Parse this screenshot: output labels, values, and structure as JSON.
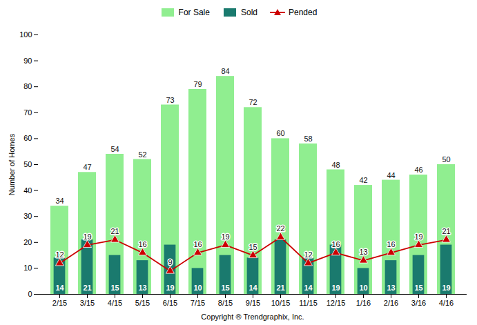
{
  "chart_data": {
    "type": "bar",
    "categories": [
      "2/15",
      "3/15",
      "4/15",
      "5/15",
      "6/15",
      "7/15",
      "8/15",
      "9/15",
      "10/15",
      "11/15",
      "12/15",
      "1/16",
      "2/16",
      "3/16",
      "4/16"
    ],
    "series": [
      {
        "name": "For Sale",
        "type": "bar",
        "color": "#90EE90",
        "values": [
          34,
          47,
          54,
          52,
          73,
          79,
          84,
          72,
          60,
          58,
          48,
          42,
          44,
          46,
          50
        ]
      },
      {
        "name": "Sold",
        "type": "bar",
        "color": "#1a7a6e",
        "values": [
          14,
          21,
          15,
          13,
          19,
          10,
          15,
          14,
          21,
          14,
          19,
          10,
          13,
          15,
          19
        ]
      },
      {
        "name": "Pended",
        "type": "line",
        "color": "#cc0000",
        "marker": "triangle",
        "values": [
          12,
          19,
          21,
          16,
          9,
          16,
          19,
          15,
          22,
          12,
          16,
          13,
          16,
          19,
          21
        ]
      }
    ],
    "xlabel": "Copyright ® Trendgraphix, Inc.",
    "ylabel": "Number of Homes",
    "ylim": [
      0,
      100
    ],
    "yticks": [
      0,
      10,
      20,
      30,
      40,
      50,
      60,
      70,
      80,
      90,
      100
    ],
    "grid": false,
    "legend": "top",
    "data_labels": true
  }
}
